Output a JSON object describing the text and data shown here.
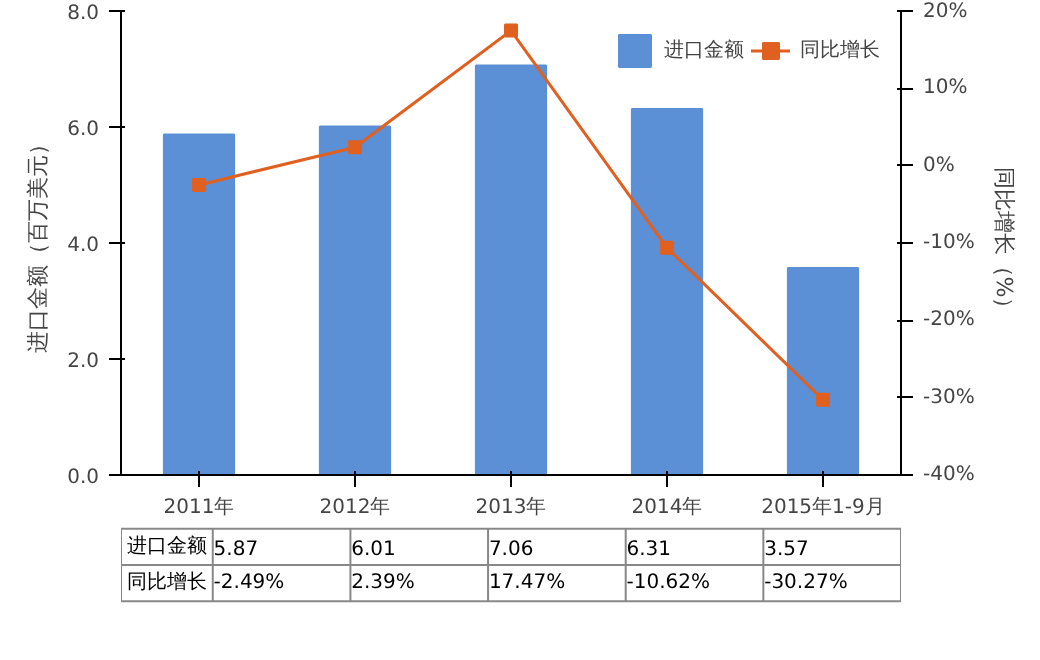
{
  "chart_data": {
    "type": "bar",
    "categories": [
      "2011年",
      "2012年",
      "2013年",
      "2014年",
      "2015年1-9月"
    ],
    "series": [
      {
        "name": "进口金额",
        "color": "#5b8fd6",
        "values": [
          5.87,
          6.01,
          7.06,
          6.31,
          3.57
        ],
        "value_labels": [
          "5.87",
          "6.01",
          "7.06",
          "6.31",
          "3.57"
        ]
      },
      {
        "name": "同比增长",
        "type": "line",
        "axis": "y2",
        "color": "#e06020",
        "values": [
          -2.49,
          2.39,
          17.47,
          -10.62,
          -30.27
        ],
        "value_labels": [
          "-2.49%",
          "2.39%",
          "17.47%",
          "-10.62%",
          "-30.27%"
        ]
      }
    ],
    "ylabel": "进口金额（百万美元）",
    "y2label": "同比增长（%）",
    "ylim": [
      0,
      8
    ],
    "yticks": [
      {
        "value": 0,
        "label": "0.0"
      },
      {
        "value": 2,
        "label": "2.0"
      },
      {
        "value": 4,
        "label": "4.0"
      },
      {
        "value": 6,
        "label": "6.0"
      },
      {
        "value": 8,
        "label": "8.0"
      }
    ],
    "y2lim": [
      -40,
      20
    ],
    "y2ticks": [
      {
        "value": -40,
        "label": "-40%"
      },
      {
        "value": -30,
        "label": "-30%"
      },
      {
        "value": -20,
        "label": "-20%"
      },
      {
        "value": -10,
        "label": "-10%"
      },
      {
        "value": 0,
        "label": "0%"
      },
      {
        "value": 10,
        "label": "10%"
      },
      {
        "value": 20,
        "label": "20%"
      }
    ],
    "legend": "top right",
    "marker": "square",
    "line_style": "solid",
    "grid": false
  }
}
